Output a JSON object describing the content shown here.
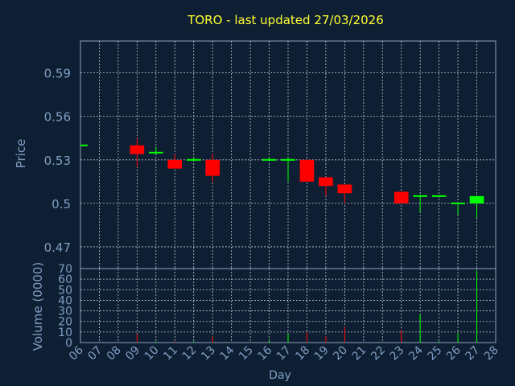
{
  "chart_data": {
    "type": "candlestick",
    "title": "TORO - last updated 27/03/2026",
    "xlabel": "Day",
    "price_panel": {
      "ylabel": "Price",
      "ylim": [
        0.455,
        0.612
      ],
      "yticks": [
        0.47,
        0.5,
        0.53,
        0.56,
        0.59
      ],
      "ytick_labels": [
        "0.47",
        "0.5",
        "0.53",
        "0.56",
        "0.59"
      ],
      "grid": true
    },
    "volume_panel": {
      "ylabel": "Volume (0000)",
      "ylim": [
        0,
        70
      ],
      "yticks": [
        0,
        10,
        20,
        30,
        40,
        50,
        60,
        70
      ],
      "ytick_labels": [
        "0",
        "10",
        "20",
        "30",
        "40",
        "50",
        "60",
        "70"
      ],
      "grid": true
    },
    "x_ticks": [
      "06",
      "07",
      "08",
      "09",
      "10",
      "11",
      "12",
      "13",
      "14",
      "15",
      "16",
      "17",
      "18",
      "19",
      "20",
      "21",
      "22",
      "23",
      "24",
      "25",
      "26",
      "27",
      "28"
    ],
    "candles": [
      {
        "day": "06",
        "open": 0.54,
        "high": 0.54,
        "low": 0.54,
        "close": 0.54,
        "volume": 0
      },
      {
        "day": "09",
        "open": 0.54,
        "high": 0.545,
        "low": 0.525,
        "close": 0.534,
        "volume": 8
      },
      {
        "day": "10",
        "open": 0.534,
        "high": 0.539,
        "low": 0.534,
        "close": 0.535,
        "volume": 1
      },
      {
        "day": "11",
        "open": 0.53,
        "high": 0.534,
        "low": 0.524,
        "close": 0.524,
        "volume": 1
      },
      {
        "day": "12",
        "open": 0.529,
        "high": 0.532,
        "low": 0.529,
        "close": 0.53,
        "volume": 1
      },
      {
        "day": "13",
        "open": 0.53,
        "high": 0.534,
        "low": 0.515,
        "close": 0.519,
        "volume": 6
      },
      {
        "day": "16",
        "open": 0.529,
        "high": 0.532,
        "low": 0.529,
        "close": 0.53,
        "volume": 2
      },
      {
        "day": "17",
        "open": 0.53,
        "high": 0.532,
        "low": 0.515,
        "close": 0.53,
        "volume": 8
      },
      {
        "day": "18",
        "open": 0.53,
        "high": 0.53,
        "low": 0.515,
        "close": 0.515,
        "volume": 10
      },
      {
        "day": "19",
        "open": 0.518,
        "high": 0.518,
        "low": 0.505,
        "close": 0.512,
        "volume": 6
      },
      {
        "day": "20",
        "open": 0.513,
        "high": 0.513,
        "low": 0.5,
        "close": 0.507,
        "volume": 15
      },
      {
        "day": "23",
        "open": 0.508,
        "high": 0.508,
        "low": 0.5,
        "close": 0.5,
        "volume": 12
      },
      {
        "day": "24",
        "open": 0.504,
        "high": 0.506,
        "low": 0.494,
        "close": 0.505,
        "volume": 27
      },
      {
        "day": "25",
        "open": 0.504,
        "high": 0.505,
        "low": 0.504,
        "close": 0.505,
        "volume": 1
      },
      {
        "day": "26",
        "open": 0.499,
        "high": 0.5,
        "low": 0.492,
        "close": 0.5,
        "volume": 9
      },
      {
        "day": "27",
        "open": 0.5,
        "high": 0.505,
        "low": 0.49,
        "close": 0.505,
        "volume": 68
      }
    ],
    "colors": {
      "background": "#0f1f33",
      "plot_background": "#0f1f33",
      "grid": "#bfc8d2",
      "axis": "#8fa3bc",
      "tick_label": "#7f9ec2",
      "title": "#ffff33",
      "axis_label": "#7f9ec2",
      "up": "#00ff00",
      "down": "#ff0000"
    }
  }
}
